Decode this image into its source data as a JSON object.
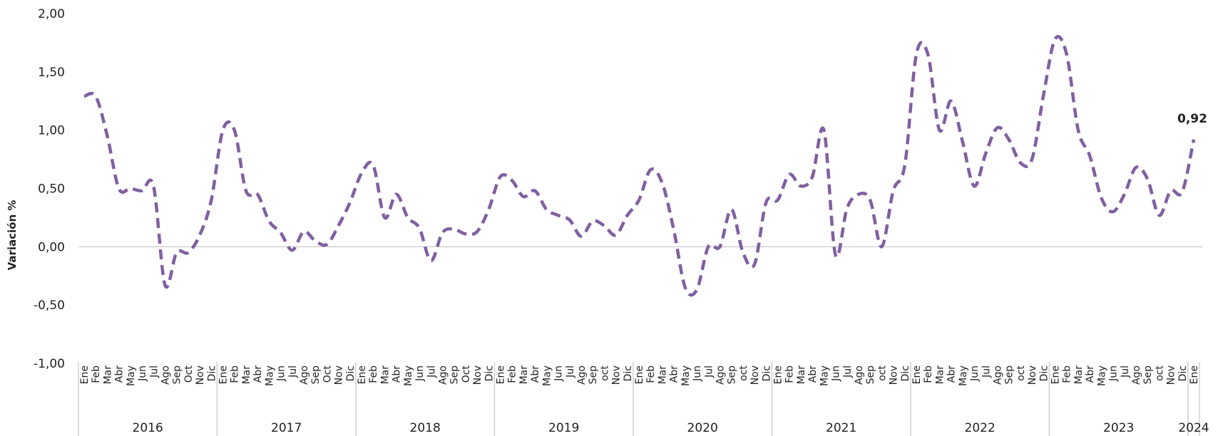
{
  "chart_data": {
    "type": "line",
    "y_label": "Variación %",
    "categories": [
      "Ene",
      "Feb",
      "Mar",
      "Abr",
      "May",
      "Jun",
      "Jul",
      "Ago",
      "Sep",
      "Oct",
      "Nov",
      "Dic",
      "Ene",
      "Feb",
      "Mar",
      "Abr",
      "May",
      "Jun",
      "Jul",
      "Ago",
      "Sep",
      "Oct",
      "Nov",
      "Dic",
      "Ene",
      "Feb",
      "Mar",
      "Abr",
      "May",
      "Jun",
      "Jul",
      "Ago",
      "Sep",
      "Oct",
      "Nov",
      "Dic",
      "Ene",
      "Feb",
      "Mar",
      "Abr",
      "May",
      "Jun",
      "Jul",
      "Ago",
      "Sep",
      "oct",
      "Nov",
      "Dic",
      "Ene",
      "Feb",
      "Mar",
      "Abr",
      "May",
      "Jun",
      "Jul",
      "Ago",
      "Sep",
      "oct",
      "Nov",
      "Dic",
      "Ene",
      "Feb",
      "Mar",
      "Abr",
      "May",
      "Jun",
      "Jul",
      "Ago",
      "Sep",
      "oct",
      "Nov",
      "Dic",
      "Ene",
      "Feb",
      "Mar",
      "Abr",
      "May",
      "Jun",
      "Jul",
      "Ago",
      "Sep",
      "oct",
      "Nov",
      "Dic",
      "Ene",
      "Feb",
      "Mar",
      "Abr",
      "May",
      "Jun",
      "Jul",
      "Ago",
      "Sep",
      "oct",
      "Nov",
      "Dic",
      "Ene"
    ],
    "years": [
      "2016",
      "2017",
      "2018",
      "2019",
      "2020",
      "2021",
      "2022",
      "2023",
      "2024"
    ],
    "series": [
      {
        "color": "#7f60a0",
        "values": [
          1.29,
          1.29,
          0.95,
          0.5,
          0.5,
          0.48,
          0.52,
          -0.33,
          -0.05,
          -0.05,
          0.1,
          0.4,
          1.0,
          1.0,
          0.48,
          0.45,
          0.22,
          0.12,
          -0.03,
          0.13,
          0.05,
          0.02,
          0.18,
          0.38,
          0.63,
          0.7,
          0.25,
          0.45,
          0.25,
          0.16,
          -0.12,
          0.12,
          0.15,
          0.11,
          0.13,
          0.32,
          0.6,
          0.57,
          0.43,
          0.48,
          0.32,
          0.27,
          0.23,
          0.09,
          0.22,
          0.18,
          0.1,
          0.27,
          0.4,
          0.66,
          0.55,
          0.15,
          -0.35,
          -0.37,
          0.0,
          0.0,
          0.32,
          -0.05,
          -0.15,
          0.38,
          0.4,
          0.62,
          0.52,
          0.6,
          1.0,
          -0.07,
          0.33,
          0.45,
          0.4,
          0.0,
          0.48,
          0.7,
          1.65,
          1.65,
          1.0,
          1.25,
          0.9,
          0.52,
          0.8,
          1.02,
          0.92,
          0.72,
          0.75,
          1.3,
          1.78,
          1.65,
          1.0,
          0.78,
          0.42,
          0.3,
          0.45,
          0.68,
          0.58,
          0.27,
          0.48,
          0.47,
          0.92
        ],
        "value_labels": [
          null,
          null,
          null,
          null,
          null,
          null,
          null,
          null,
          null,
          null,
          null,
          null,
          null,
          null,
          null,
          null,
          null,
          null,
          null,
          null,
          null,
          null,
          null,
          null,
          null,
          null,
          null,
          null,
          null,
          null,
          null,
          null,
          null,
          null,
          null,
          null,
          null,
          null,
          null,
          null,
          null,
          null,
          null,
          null,
          null,
          null,
          null,
          null,
          null,
          null,
          null,
          null,
          null,
          null,
          null,
          null,
          null,
          null,
          null,
          null,
          null,
          null,
          null,
          null,
          null,
          null,
          null,
          null,
          null,
          null,
          null,
          null,
          null,
          null,
          null,
          null,
          null,
          null,
          null,
          null,
          null,
          null,
          null,
          null,
          null,
          null,
          null,
          null,
          null,
          null,
          null,
          null,
          null,
          null,
          null,
          null,
          "0,92"
        ]
      }
    ],
    "ylim": [
      -1,
      2
    ],
    "yticks": [
      {
        "value": -1,
        "label": "-1,00"
      },
      {
        "value": -0.5,
        "label": "-0,50"
      },
      {
        "value": 0,
        "label": "0,00"
      },
      {
        "value": 0.5,
        "label": "0,50"
      },
      {
        "value": 1,
        "label": "1,00"
      },
      {
        "value": 1.5,
        "label": "1,50"
      },
      {
        "value": 2,
        "label": "2,00"
      }
    ],
    "grid": false,
    "zero_line": true
  }
}
